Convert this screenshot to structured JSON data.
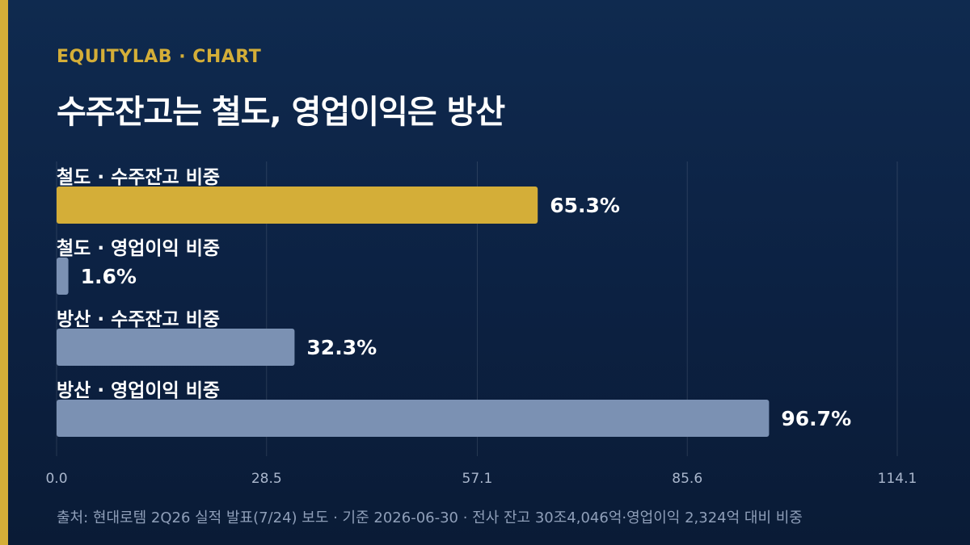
{
  "header": {
    "eyebrow": "EQUITYLAB · CHART",
    "title": "수주잔고는 철도, 영업이익은 방산"
  },
  "colors": {
    "accent": "#d4ae38",
    "bar_default": "#7b91b3",
    "background": "#0c2142",
    "text": "#ffffff",
    "muted": "#8f9fb9"
  },
  "chart_data": {
    "type": "bar",
    "orientation": "horizontal",
    "categories": [
      "철도 · 수주잔고 비중",
      "철도 · 영업이익 비중",
      "방산 · 수주잔고 비중",
      "방산 · 영업이익 비중"
    ],
    "values": [
      65.3,
      1.6,
      32.3,
      96.7
    ],
    "value_labels": [
      "65.3%",
      "1.6%",
      "32.3%",
      "96.7%"
    ],
    "highlight_index": 0,
    "xlim": [
      0,
      114.1
    ],
    "xticks": [
      0.0,
      28.5,
      57.1,
      85.6,
      114.1
    ],
    "xtick_labels": [
      "0.0",
      "28.5",
      "57.1",
      "85.6",
      "114.1"
    ],
    "grid": true,
    "unit": "%"
  },
  "footer": {
    "source": "출처: 현대로템 2Q26 실적 발표(7/24) 보도 · 기준 2026-06-30 · 전사 잔고 30조4,046억·영업이익 2,324억 대비 비중"
  }
}
